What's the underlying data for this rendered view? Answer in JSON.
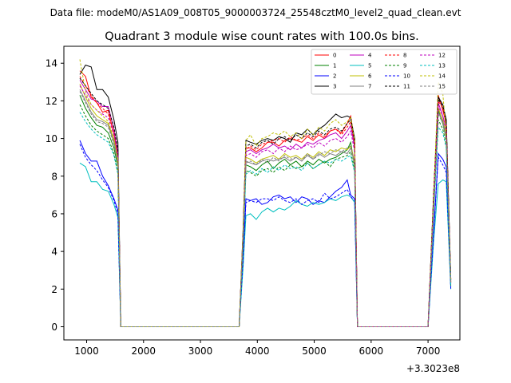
{
  "header": {
    "data_file": "Data file: modeM0/AS1A09_008T05_9000003724_25548cztM0_level2_quad_clean.evt"
  },
  "chart_data": {
    "type": "line",
    "title": "Quadrant 3 module wise count rates with 100.0s bins.",
    "xlabel": "",
    "ylabel": "",
    "x_offset_label": "+3.3023e8",
    "xlim": [
      600,
      7560
    ],
    "ylim": [
      -0.7,
      14.9
    ],
    "x_ticks": [
      1000,
      2000,
      3000,
      4000,
      5000,
      6000,
      7000
    ],
    "y_ticks": [
      0,
      2,
      4,
      6,
      8,
      10,
      12,
      14
    ],
    "grid": false,
    "legend_position": "top-right",
    "segment_x": [
      [
        880,
        980,
        1080,
        1180,
        1280,
        1380,
        1480,
        1550,
        1600
      ],
      [
        3680,
        3750,
        3800,
        3880,
        3980,
        4080,
        4180,
        4280,
        4380,
        4480,
        4580,
        4680,
        4780,
        4880,
        4980,
        5080,
        5180,
        5280,
        5380,
        5480,
        5580,
        5640,
        5710,
        5760
      ],
      [
        7000,
        7100,
        7180,
        7260,
        7320,
        7400
      ]
    ],
    "flat_x": [
      [
        1600,
        3680
      ],
      [
        5760,
        7000
      ]
    ],
    "series": [
      {
        "name": "0",
        "color": "#ff0000",
        "dash": false,
        "segments": [
          [
            13.6,
            13.3,
            12.2,
            11.9,
            11.4,
            11.5,
            10.2,
            9.0,
            0.0
          ],
          [
            0.0,
            5.0,
            9.5,
            9.5,
            9.3,
            9.5,
            9.8,
            9.8,
            9.6,
            9.9,
            10.0,
            9.9,
            9.8,
            10.1,
            9.9,
            10.2,
            10.0,
            10.4,
            10.5,
            10.3,
            10.8,
            11.2,
            9.8,
            0.0
          ],
          [
            0.0,
            7.0,
            12.3,
            11.5,
            10.8,
            2.5
          ]
        ]
      },
      {
        "name": "1",
        "color": "#008000",
        "dash": false,
        "segments": [
          [
            12.3,
            11.6,
            11.1,
            10.7,
            10.6,
            10.3,
            9.5,
            8.5,
            0.0
          ],
          [
            0.0,
            4.6,
            8.6,
            8.5,
            8.3,
            8.6,
            8.8,
            8.4,
            8.7,
            8.9,
            8.6,
            8.8,
            8.5,
            8.8,
            8.6,
            8.9,
            8.7,
            8.9,
            9.0,
            9.2,
            9.4,
            9.8,
            8.5,
            0.0
          ],
          [
            0.0,
            6.5,
            11.5,
            10.8,
            10.0,
            2.3
          ]
        ]
      },
      {
        "name": "2",
        "color": "#0000ff",
        "dash": false,
        "segments": [
          [
            9.9,
            9.2,
            8.8,
            8.8,
            8.0,
            7.5,
            6.8,
            6.2,
            0.0
          ],
          [
            0.0,
            3.5,
            6.8,
            6.7,
            6.8,
            6.5,
            6.6,
            6.9,
            7.0,
            6.8,
            6.9,
            6.6,
            6.9,
            6.8,
            6.5,
            6.7,
            6.6,
            6.9,
            7.2,
            7.4,
            7.8,
            7.0,
            6.8,
            0.0
          ],
          [
            0.0,
            5.0,
            9.2,
            8.9,
            8.5,
            2.1
          ]
        ]
      },
      {
        "name": "3",
        "color": "#000000",
        "dash": false,
        "segments": [
          [
            13.4,
            13.9,
            13.8,
            12.6,
            12.6,
            12.2,
            11.0,
            9.8,
            0.0
          ],
          [
            0.0,
            5.2,
            9.9,
            9.8,
            9.7,
            9.9,
            10.0,
            9.9,
            10.1,
            10.0,
            9.8,
            10.3,
            10.2,
            10.5,
            10.2,
            10.5,
            10.7,
            11.0,
            11.3,
            11.1,
            11.2,
            11.1,
            10.0,
            0.0
          ],
          [
            0.0,
            7.2,
            12.2,
            11.8,
            11.0,
            2.5
          ]
        ]
      },
      {
        "name": "4",
        "color": "#bf00bf",
        "dash": false,
        "segments": [
          [
            13.1,
            12.6,
            12.1,
            12.0,
            11.7,
            11.7,
            10.5,
            9.2,
            0.0
          ],
          [
            0.0,
            5.0,
            9.3,
            9.4,
            9.2,
            9.4,
            9.5,
            9.7,
            9.5,
            9.6,
            9.4,
            9.7,
            9.5,
            9.8,
            9.7,
            9.9,
            10.0,
            10.2,
            10.3,
            10.0,
            10.4,
            10.7,
            9.5,
            0.0
          ],
          [
            0.0,
            6.8,
            11.9,
            11.2,
            10.5,
            2.4
          ]
        ]
      },
      {
        "name": "5",
        "color": "#00bfbf",
        "dash": false,
        "segments": [
          [
            8.7,
            8.5,
            7.7,
            7.7,
            7.3,
            7.2,
            6.5,
            5.8,
            0.0
          ],
          [
            0.0,
            3.2,
            5.9,
            6.0,
            5.7,
            6.1,
            6.3,
            6.1,
            6.3,
            6.2,
            6.4,
            6.7,
            6.5,
            6.4,
            6.6,
            6.5,
            6.6,
            6.8,
            6.7,
            6.9,
            7.0,
            6.9,
            6.6,
            0.0
          ],
          [
            0.0,
            4.6,
            7.6,
            7.8,
            7.7,
            2.0
          ]
        ]
      },
      {
        "name": "6",
        "color": "#bfbf00",
        "dash": false,
        "segments": [
          [
            12.9,
            12.2,
            11.6,
            11.2,
            11.0,
            10.8,
            9.9,
            8.8,
            0.0
          ],
          [
            0.0,
            4.8,
            9.0,
            8.9,
            8.7,
            8.9,
            9.0,
            9.1,
            8.9,
            9.2,
            9.0,
            9.1,
            8.9,
            9.2,
            9.0,
            9.3,
            9.1,
            9.4,
            9.3,
            9.5,
            9.4,
            9.6,
            8.8,
            0.0
          ],
          [
            0.0,
            6.6,
            11.6,
            11.0,
            10.2,
            2.4
          ]
        ]
      },
      {
        "name": "7",
        "color": "#808080",
        "dash": false,
        "segments": [
          [
            12.6,
            12.0,
            11.4,
            11.0,
            10.9,
            10.7,
            9.8,
            8.7,
            0.0
          ],
          [
            0.0,
            4.7,
            8.8,
            8.7,
            8.6,
            8.8,
            8.9,
            8.8,
            8.9,
            9.0,
            8.8,
            9.0,
            8.8,
            9.1,
            8.9,
            9.2,
            9.0,
            9.2,
            9.1,
            9.3,
            9.2,
            9.5,
            8.7,
            0.0
          ],
          [
            0.0,
            6.5,
            11.4,
            10.9,
            10.1,
            2.3
          ]
        ]
      },
      {
        "name": "8",
        "color": "#ff0000",
        "dash": true,
        "segments": [
          [
            13.3,
            12.8,
            12.3,
            11.9,
            11.6,
            11.3,
            10.3,
            9.0,
            0.0
          ],
          [
            0.0,
            5.0,
            9.4,
            9.6,
            9.4,
            9.7,
            9.8,
            9.9,
            10.0,
            9.8,
            10.1,
            9.9,
            10.0,
            10.2,
            10.0,
            10.3,
            10.1,
            10.4,
            10.5,
            10.2,
            10.6,
            10.9,
            9.7,
            0.0
          ],
          [
            0.0,
            7.0,
            12.0,
            11.6,
            10.7,
            2.4
          ]
        ]
      },
      {
        "name": "9",
        "color": "#008000",
        "dash": true,
        "segments": [
          [
            11.8,
            11.2,
            10.7,
            10.4,
            10.2,
            10.0,
            9.2,
            8.2,
            0.0
          ],
          [
            0.0,
            4.4,
            8.3,
            8.2,
            8.0,
            8.3,
            8.4,
            8.2,
            8.5,
            8.3,
            8.6,
            8.4,
            8.5,
            8.7,
            8.4,
            8.6,
            8.8,
            8.5,
            8.9,
            9.0,
            9.1,
            9.3,
            8.3,
            0.0
          ],
          [
            0.0,
            6.2,
            11.0,
            10.5,
            9.7,
            2.2
          ]
        ]
      },
      {
        "name": "10",
        "color": "#0000ff",
        "dash": true,
        "segments": [
          [
            9.7,
            9.0,
            8.6,
            8.3,
            7.8,
            7.4,
            6.7,
            6.0,
            0.0
          ],
          [
            0.0,
            3.6,
            6.6,
            6.7,
            6.6,
            6.8,
            6.8,
            6.7,
            6.9,
            6.7,
            6.6,
            6.8,
            6.5,
            6.7,
            6.8,
            6.6,
            7.1,
            6.8,
            6.9,
            7.1,
            7.3,
            6.9,
            6.7,
            0.0
          ],
          [
            0.0,
            5.0,
            9.0,
            8.6,
            8.2,
            2.0
          ]
        ]
      },
      {
        "name": "11",
        "color": "#000000",
        "dash": true,
        "segments": [
          [
            13.2,
            12.8,
            12.4,
            12.0,
            11.8,
            11.6,
            10.6,
            9.4,
            0.0
          ],
          [
            0.0,
            5.1,
            9.6,
            9.7,
            9.5,
            9.8,
            9.9,
            9.7,
            10.0,
            10.1,
            9.9,
            10.2,
            10.0,
            10.3,
            10.1,
            10.4,
            10.2,
            10.5,
            10.6,
            10.4,
            10.8,
            11.0,
            9.8,
            0.0
          ],
          [
            0.0,
            7.1,
            12.1,
            11.7,
            10.9,
            2.5
          ]
        ]
      },
      {
        "name": "12",
        "color": "#bf00bf",
        "dash": true,
        "segments": [
          [
            12.8,
            12.3,
            11.8,
            11.5,
            11.3,
            11.1,
            10.2,
            9.0,
            0.0
          ],
          [
            0.0,
            4.9,
            9.1,
            9.2,
            9.0,
            9.3,
            9.4,
            9.2,
            9.5,
            9.3,
            9.6,
            9.4,
            9.5,
            9.7,
            9.5,
            9.8,
            9.6,
            9.9,
            10.0,
            9.8,
            10.1,
            10.4,
            9.3,
            0.0
          ],
          [
            0.0,
            6.8,
            11.7,
            11.2,
            10.4,
            2.3
          ]
        ]
      },
      {
        "name": "13",
        "color": "#00bfbf",
        "dash": true,
        "segments": [
          [
            11.4,
            10.9,
            10.5,
            10.2,
            10.0,
            9.8,
            9.1,
            8.1,
            0.0
          ],
          [
            0.0,
            4.4,
            8.1,
            8.3,
            8.1,
            8.4,
            8.2,
            8.5,
            8.3,
            8.6,
            8.4,
            8.5,
            8.3,
            8.7,
            8.4,
            8.6,
            8.8,
            8.7,
            8.9,
            8.8,
            9.0,
            9.1,
            8.2,
            0.0
          ],
          [
            0.0,
            6.0,
            10.6,
            10.3,
            9.5,
            2.2
          ]
        ]
      },
      {
        "name": "14",
        "color": "#bfbf00",
        "dash": true,
        "segments": [
          [
            14.2,
            12.5,
            11.8,
            11.5,
            11.2,
            10.9,
            10.0,
            8.9,
            0.0
          ],
          [
            0.0,
            5.2,
            9.9,
            10.2,
            9.6,
            10.0,
            10.1,
            10.3,
            10.2,
            10.4,
            10.1,
            10.3,
            10.0,
            10.5,
            10.2,
            10.6,
            10.4,
            10.8,
            11.0,
            10.7,
            10.9,
            11.1,
            9.9,
            0.0
          ],
          [
            0.0,
            7.1,
            13.0,
            12.4,
            10.2,
            2.4
          ]
        ]
      },
      {
        "name": "15",
        "color": "#808080",
        "dash": true,
        "segments": [
          [
            12.5,
            11.9,
            11.3,
            10.9,
            10.8,
            10.6,
            9.7,
            8.6,
            0.0
          ],
          [
            0.0,
            4.7,
            8.7,
            8.8,
            8.6,
            8.9,
            8.7,
            9.0,
            8.8,
            9.1,
            8.9,
            9.0,
            8.8,
            9.2,
            8.9,
            9.1,
            9.3,
            9.2,
            9.4,
            9.3,
            9.5,
            9.6,
            8.6,
            0.0
          ],
          [
            0.0,
            6.4,
            11.3,
            10.8,
            10.0,
            2.3
          ]
        ]
      }
    ]
  }
}
